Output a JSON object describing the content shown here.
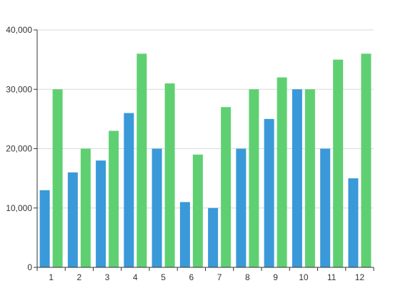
{
  "chart_data": {
    "type": "bar",
    "categories": [
      "1",
      "2",
      "3",
      "4",
      "5",
      "6",
      "7",
      "8",
      "9",
      "10",
      "11",
      "12"
    ],
    "series": [
      {
        "values": [
          13000,
          16000,
          18000,
          26000,
          20000,
          11000,
          10000,
          20000,
          25000,
          30000,
          20000,
          15000
        ],
        "color": "#3a99d9"
      },
      {
        "values": [
          30000,
          20000,
          23000,
          36000,
          31000,
          19000,
          27000,
          30000,
          32000,
          30000,
          35000,
          36000
        ],
        "color": "#5fd072"
      }
    ],
    "ylim": [
      0,
      40000
    ],
    "yticks": [
      "0",
      "10,000",
      "20,000",
      "30,000",
      "40,000"
    ],
    "grid": true,
    "gridColor": "#d9d9d9",
    "axisColor": "#333333"
  }
}
